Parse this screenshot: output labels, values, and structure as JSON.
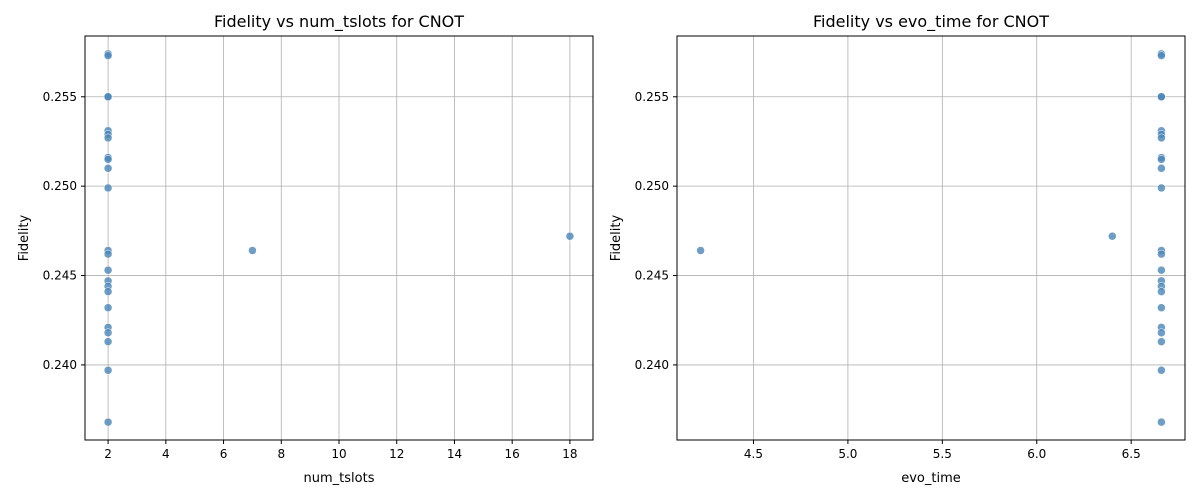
{
  "chart_data": [
    {
      "type": "scatter",
      "title": "Fidelity vs num_tslots for CNOT",
      "xlabel": "num_tslots",
      "ylabel": "Fidelity",
      "xlim": [
        1.2,
        18.8
      ],
      "ylim": [
        0.2358,
        0.2584
      ],
      "xticks": [
        2,
        4,
        6,
        8,
        10,
        12,
        14,
        16,
        18
      ],
      "xtick_labels": [
        "2",
        "4",
        "6",
        "8",
        "10",
        "12",
        "14",
        "16",
        "18"
      ],
      "yticks": [
        0.24,
        0.245,
        0.25,
        0.255
      ],
      "ytick_labels": [
        "0.240",
        "0.245",
        "0.250",
        "0.255"
      ],
      "grid": true,
      "marker_color": "#4a86b8",
      "points": [
        {
          "x": 2,
          "y": 0.2574
        },
        {
          "x": 2,
          "y": 0.2573
        },
        {
          "x": 2,
          "y": 0.255
        },
        {
          "x": 2,
          "y": 0.255
        },
        {
          "x": 2,
          "y": 0.2531
        },
        {
          "x": 2,
          "y": 0.2529
        },
        {
          "x": 2,
          "y": 0.2527
        },
        {
          "x": 2,
          "y": 0.2516
        },
        {
          "x": 2,
          "y": 0.2515
        },
        {
          "x": 2,
          "y": 0.251
        },
        {
          "x": 2,
          "y": 0.2499
        },
        {
          "x": 2,
          "y": 0.2464
        },
        {
          "x": 2,
          "y": 0.2462
        },
        {
          "x": 2,
          "y": 0.2453
        },
        {
          "x": 2,
          "y": 0.2447
        },
        {
          "x": 2,
          "y": 0.2444
        },
        {
          "x": 2,
          "y": 0.2441
        },
        {
          "x": 2,
          "y": 0.2432
        },
        {
          "x": 2,
          "y": 0.2421
        },
        {
          "x": 2,
          "y": 0.2418
        },
        {
          "x": 2,
          "y": 0.2413
        },
        {
          "x": 2,
          "y": 0.2397
        },
        {
          "x": 2,
          "y": 0.2368
        },
        {
          "x": 7,
          "y": 0.2464
        },
        {
          "x": 18,
          "y": 0.2472
        }
      ]
    },
    {
      "type": "scatter",
      "title": "Fidelity vs evo_time for CNOT",
      "xlabel": "evo_time",
      "ylabel": "Fidelity",
      "xlim": [
        4.095,
        6.785
      ],
      "ylim": [
        0.2358,
        0.2584
      ],
      "xticks": [
        4.5,
        5.0,
        5.5,
        6.0,
        6.5
      ],
      "xtick_labels": [
        "4.5",
        "5.0",
        "5.5",
        "6.0",
        "6.5"
      ],
      "yticks": [
        0.24,
        0.245,
        0.25,
        0.255
      ],
      "ytick_labels": [
        "0.240",
        "0.245",
        "0.250",
        "0.255"
      ],
      "grid": true,
      "marker_color": "#4a86b8",
      "points": [
        {
          "x": 6.66,
          "y": 0.2574
        },
        {
          "x": 6.66,
          "y": 0.2573
        },
        {
          "x": 6.66,
          "y": 0.255
        },
        {
          "x": 6.66,
          "y": 0.255
        },
        {
          "x": 6.66,
          "y": 0.2531
        },
        {
          "x": 6.66,
          "y": 0.2529
        },
        {
          "x": 6.66,
          "y": 0.2527
        },
        {
          "x": 6.66,
          "y": 0.2516
        },
        {
          "x": 6.66,
          "y": 0.2515
        },
        {
          "x": 6.66,
          "y": 0.251
        },
        {
          "x": 6.66,
          "y": 0.2499
        },
        {
          "x": 6.66,
          "y": 0.2464
        },
        {
          "x": 6.66,
          "y": 0.2462
        },
        {
          "x": 6.66,
          "y": 0.2453
        },
        {
          "x": 6.66,
          "y": 0.2447
        },
        {
          "x": 6.66,
          "y": 0.2444
        },
        {
          "x": 6.66,
          "y": 0.2441
        },
        {
          "x": 6.66,
          "y": 0.2432
        },
        {
          "x": 6.66,
          "y": 0.2421
        },
        {
          "x": 6.66,
          "y": 0.2418
        },
        {
          "x": 6.66,
          "y": 0.2413
        },
        {
          "x": 6.66,
          "y": 0.2397
        },
        {
          "x": 6.66,
          "y": 0.2368
        },
        {
          "x": 4.22,
          "y": 0.2464
        },
        {
          "x": 6.4,
          "y": 0.2472
        }
      ]
    }
  ]
}
